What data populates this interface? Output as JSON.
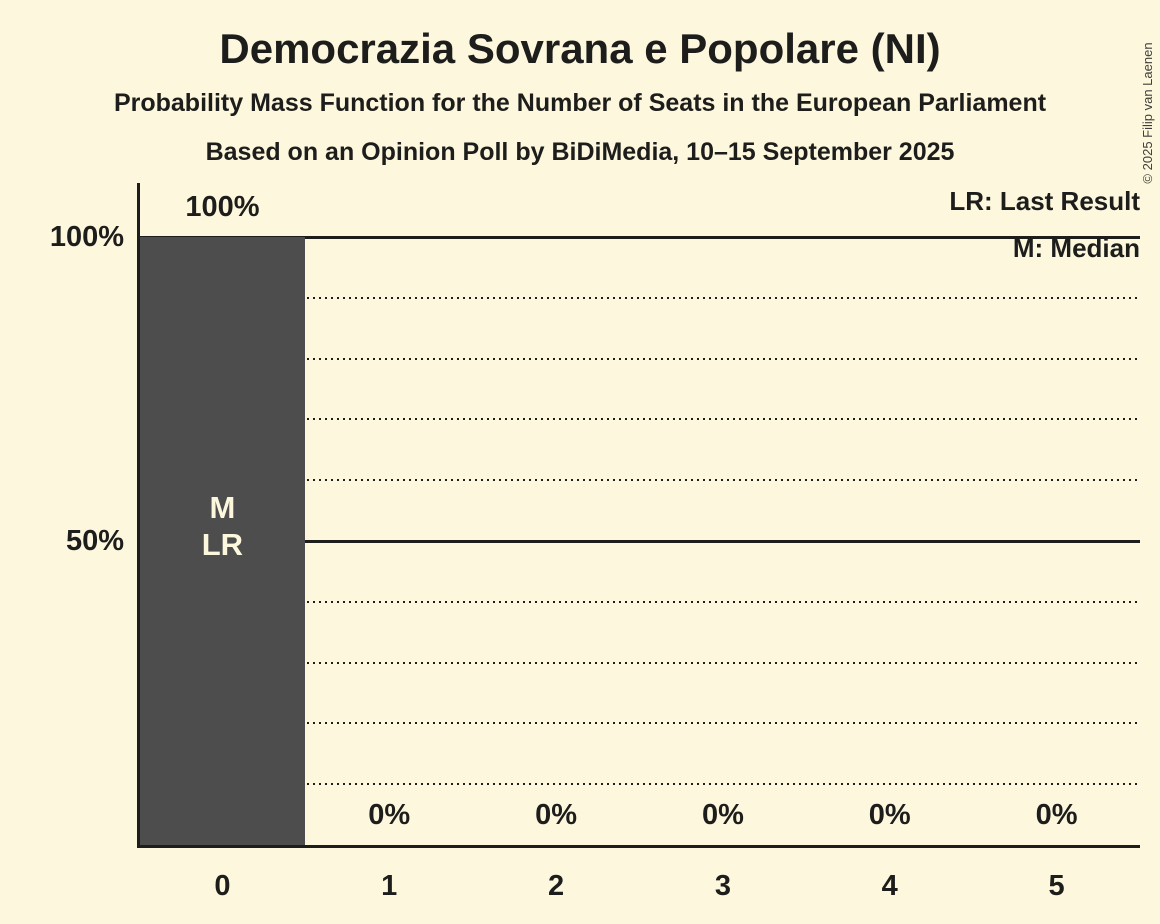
{
  "page": {
    "title": "Democrazia Sovrana e Popolare (NI)",
    "subtitle": "Probability Mass Function for the Number of Seats in the European Parliament",
    "poll_line": "Based on an Opinion Poll by BiDiMedia, 10–15 September 2025",
    "copyright": "© 2025 Filip van Laenen"
  },
  "legend": {
    "last_result": "LR: Last Result",
    "median": "M: Median"
  },
  "colors": {
    "background": "#FCF7DD",
    "bar": "#4D4D4D",
    "ink": "#1D1D1B",
    "bar_label": "#FCF7DD"
  },
  "chart_data": {
    "type": "bar",
    "title": "Democrazia Sovrana e Popolare (NI)",
    "subtitle": "Probability Mass Function for the Number of Seats in the European Parliament",
    "source": "Based on an Opinion Poll by BiDiMedia, 10–15 September 2025",
    "categories": [
      "0",
      "1",
      "2",
      "3",
      "4",
      "5"
    ],
    "values": [
      100,
      0,
      0,
      0,
      0,
      0
    ],
    "value_labels": [
      "100%",
      "0%",
      "0%",
      "0%",
      "0%",
      "0%"
    ],
    "ylim": [
      0,
      100
    ],
    "y_axis_labels": [
      {
        "value": 100,
        "label": "100%"
      },
      {
        "value": 50,
        "label": "50%"
      }
    ],
    "gridlines": {
      "solid_at": [
        100,
        50
      ],
      "dotted_at": [
        90,
        80,
        70,
        60,
        40,
        30,
        20,
        10
      ]
    },
    "annotations": [
      {
        "category_index": 0,
        "lines": [
          "M",
          "LR"
        ]
      }
    ],
    "legend_position": "top-right",
    "grid": true
  }
}
